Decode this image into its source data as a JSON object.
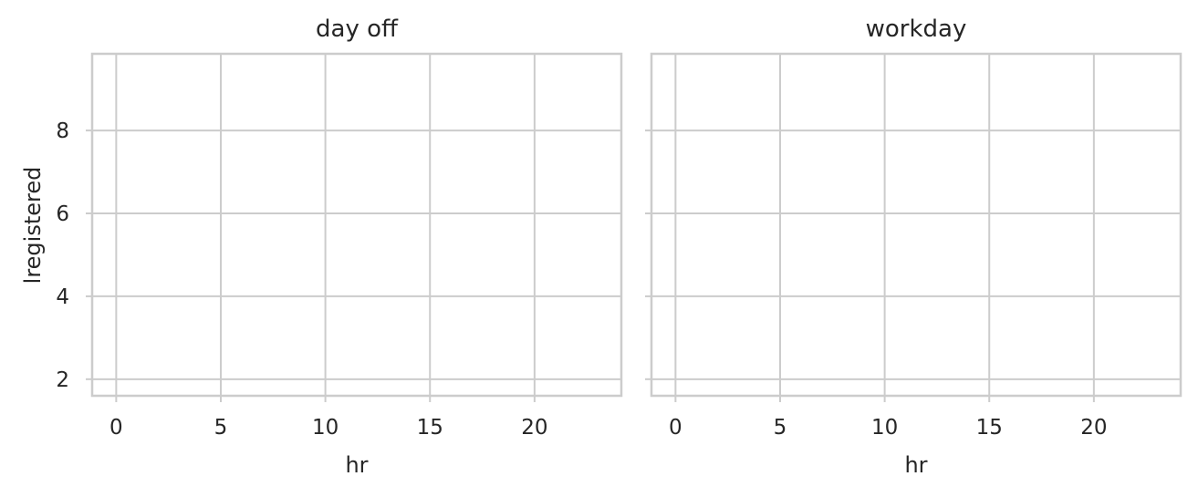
{
  "chart_data": [
    {
      "type": "line",
      "title": "day off",
      "xlabel": "hr",
      "ylabel": "lregistered",
      "xlim": [
        -1.15,
        24.15
      ],
      "ylim": [
        1.6,
        9.85
      ],
      "xticks": [
        0,
        5,
        10,
        15,
        20
      ],
      "yticks": [
        2,
        4,
        6,
        8
      ],
      "grid": true,
      "series": []
    },
    {
      "type": "line",
      "title": "workday",
      "xlabel": "hr",
      "ylabel": "",
      "xlim": [
        -1.15,
        24.15
      ],
      "ylim": [
        1.6,
        9.85
      ],
      "xticks": [
        0,
        5,
        10,
        15,
        20
      ],
      "yticks": [
        2,
        4,
        6,
        8
      ],
      "grid": true,
      "series": []
    }
  ],
  "colors": {
    "grid": "#cccccc",
    "text": "#262626",
    "background": "#ffffff"
  }
}
